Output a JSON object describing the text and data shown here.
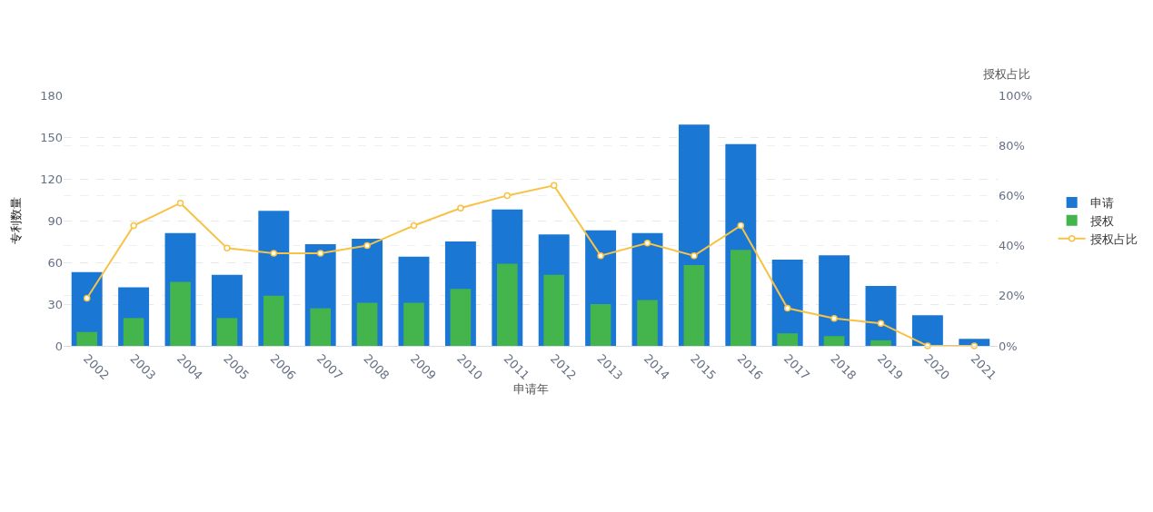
{
  "chart_data": {
    "type": "bar",
    "xlabel": "申请年",
    "ylabel": "专利数量",
    "y2label": "授权占比",
    "categories": [
      "2002",
      "2003",
      "2004",
      "2005",
      "2006",
      "2007",
      "2008",
      "2009",
      "2010",
      "2011",
      "2012",
      "2013",
      "2014",
      "2015",
      "2016",
      "2017",
      "2018",
      "2019",
      "2020",
      "2021"
    ],
    "series": [
      {
        "name": "申请",
        "color": "#1a77d4",
        "values": [
          53,
          42,
          81,
          51,
          97,
          73,
          77,
          64,
          75,
          98,
          80,
          83,
          81,
          159,
          145,
          62,
          65,
          43,
          22,
          5
        ]
      },
      {
        "name": "授权",
        "color": "#43b54c",
        "values": [
          10,
          20,
          46,
          20,
          36,
          27,
          31,
          31,
          41,
          59,
          51,
          30,
          33,
          58,
          69,
          9,
          7,
          4,
          0,
          0
        ]
      },
      {
        "name": "授权占比",
        "type": "line",
        "axis": "y2",
        "color": "#f7c346",
        "values": [
          19,
          48,
          57,
          39,
          37,
          37,
          40,
          48,
          55,
          60,
          64,
          36,
          41,
          36,
          48,
          15,
          11,
          9,
          0,
          0
        ]
      }
    ],
    "ylim": [
      0,
      180
    ],
    "yticks": [
      0,
      30,
      60,
      90,
      120,
      150,
      180
    ],
    "y2lim": [
      0,
      100
    ],
    "y2ticks": [
      {
        "value": 0,
        "label": "0%"
      },
      {
        "value": 20,
        "label": "20%"
      },
      {
        "value": 40,
        "label": "40%"
      },
      {
        "value": 60,
        "label": "60%"
      },
      {
        "value": 80,
        "label": "80%"
      },
      {
        "value": 100,
        "label": "100%"
      }
    ],
    "grid": true,
    "legend": "right",
    "marker": "circle"
  }
}
